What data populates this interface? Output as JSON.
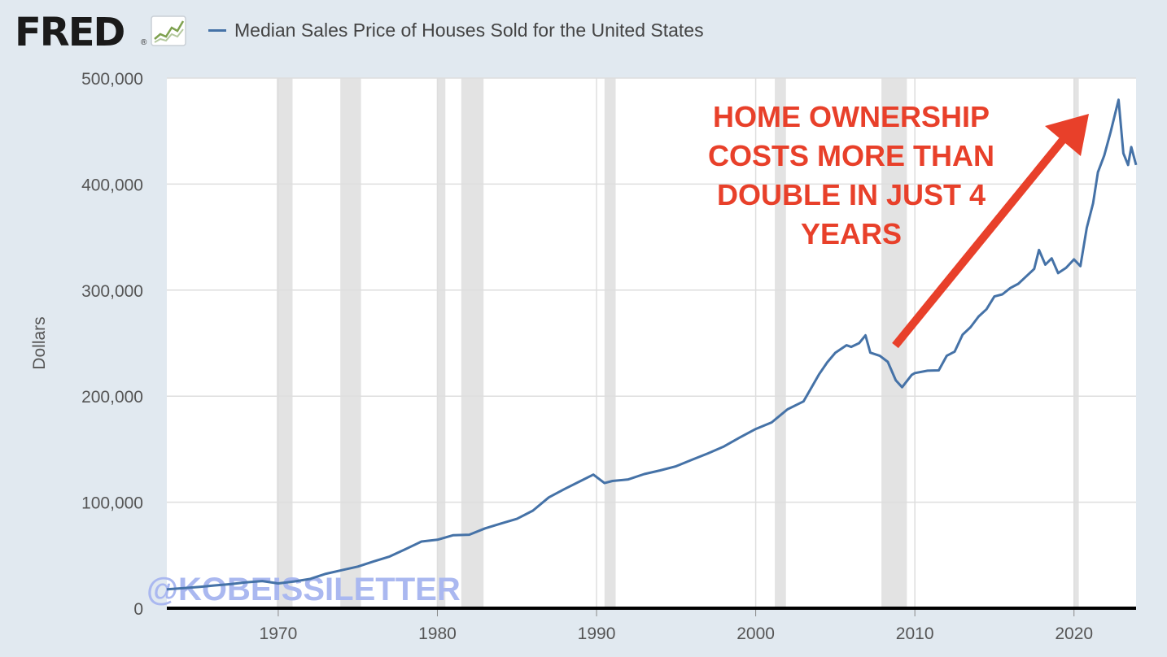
{
  "header": {
    "logo_text": "FRED",
    "logo_reg": "®",
    "logo_icon": "line-chart-icon",
    "series_title": "Median Sales Price of Houses Sold for the United States"
  },
  "colors": {
    "background": "#e1e9f0",
    "plot_background": "#ffffff",
    "series": "#4572a7",
    "recession": "#e3e3e3",
    "annotation": "#e8402a",
    "watermark": "#aab8f0"
  },
  "annotation": {
    "lines": [
      "HOME OWNERSHIP",
      "COSTS MORE THAN",
      "DOUBLE IN JUST 4",
      "YEARS"
    ]
  },
  "watermark": "@KOBEISSILETTER",
  "chart_data": {
    "type": "line",
    "ylabel": "Dollars",
    "xlim": [
      1963,
      2023.9
    ],
    "ylim": [
      0,
      500000
    ],
    "yticks": [
      0,
      100000,
      200000,
      300000,
      400000,
      500000
    ],
    "ytick_labels": [
      "0",
      "100,000",
      "200,000",
      "300,000",
      "400,000",
      "500,000"
    ],
    "xticks": [
      1970,
      1980,
      1990,
      2000,
      2010,
      2020
    ],
    "xtick_labels": [
      "1970",
      "1980",
      "1990",
      "2000",
      "2010",
      "2020"
    ],
    "grid": "horizontal",
    "recessions": [
      [
        1969.9,
        1970.9
      ],
      [
        1973.9,
        1975.2
      ],
      [
        1980.0,
        1980.5
      ],
      [
        1981.5,
        1982.9
      ],
      [
        1990.5,
        1991.2
      ],
      [
        2001.2,
        2001.9
      ],
      [
        2007.9,
        2009.5
      ],
      [
        2020.0,
        2020.3
      ]
    ],
    "series": [
      {
        "name": "Median Sales Price of Houses Sold for the United States",
        "points": [
          [
            1963.0,
            17800
          ],
          [
            1964.0,
            18900
          ],
          [
            1965.0,
            20000
          ],
          [
            1966.0,
            21500
          ],
          [
            1967.0,
            22700
          ],
          [
            1968.0,
            24500
          ],
          [
            1969.0,
            25600
          ],
          [
            1970.0,
            23400
          ],
          [
            1971.0,
            25200
          ],
          [
            1972.0,
            27600
          ],
          [
            1973.0,
            32500
          ],
          [
            1974.0,
            35900
          ],
          [
            1975.0,
            39300
          ],
          [
            1976.0,
            44200
          ],
          [
            1977.0,
            48800
          ],
          [
            1978.0,
            55700
          ],
          [
            1979.0,
            62900
          ],
          [
            1980.0,
            64600
          ],
          [
            1981.0,
            68900
          ],
          [
            1982.0,
            69300
          ],
          [
            1983.0,
            75300
          ],
          [
            1984.0,
            79900
          ],
          [
            1985.0,
            84300
          ],
          [
            1986.0,
            92000
          ],
          [
            1987.0,
            104500
          ],
          [
            1988.0,
            112500
          ],
          [
            1989.0,
            120000
          ],
          [
            1989.8,
            126000
          ],
          [
            1990.5,
            118000
          ],
          [
            1991.0,
            120000
          ],
          [
            1992.0,
            121500
          ],
          [
            1993.0,
            126500
          ],
          [
            1994.0,
            130000
          ],
          [
            1995.0,
            133900
          ],
          [
            1996.0,
            140000
          ],
          [
            1997.0,
            146000
          ],
          [
            1998.0,
            152500
          ],
          [
            1999.0,
            161000
          ],
          [
            2000.0,
            169000
          ],
          [
            2001.0,
            175200
          ],
          [
            2002.0,
            187600
          ],
          [
            2003.0,
            195000
          ],
          [
            2004.0,
            221000
          ],
          [
            2004.5,
            232000
          ],
          [
            2005.0,
            240900
          ],
          [
            2005.7,
            248000
          ],
          [
            2006.0,
            246500
          ],
          [
            2006.5,
            250000
          ],
          [
            2006.9,
            257400
          ],
          [
            2007.2,
            241000
          ],
          [
            2007.8,
            238000
          ],
          [
            2008.3,
            232400
          ],
          [
            2008.8,
            215000
          ],
          [
            2009.2,
            208400
          ],
          [
            2009.8,
            220000
          ],
          [
            2010.0,
            221800
          ],
          [
            2010.8,
            224000
          ],
          [
            2011.5,
            224300
          ],
          [
            2012.0,
            238000
          ],
          [
            2012.5,
            242000
          ],
          [
            2013.0,
            258000
          ],
          [
            2013.5,
            265000
          ],
          [
            2014.0,
            275000
          ],
          [
            2014.5,
            282000
          ],
          [
            2015.0,
            294000
          ],
          [
            2015.5,
            296000
          ],
          [
            2016.0,
            302000
          ],
          [
            2016.5,
            306000
          ],
          [
            2017.0,
            313000
          ],
          [
            2017.5,
            320000
          ],
          [
            2017.8,
            337900
          ],
          [
            2018.2,
            324000
          ],
          [
            2018.6,
            330000
          ],
          [
            2019.0,
            316000
          ],
          [
            2019.5,
            321000
          ],
          [
            2020.0,
            329000
          ],
          [
            2020.4,
            322600
          ],
          [
            2020.8,
            358700
          ],
          [
            2021.2,
            382000
          ],
          [
            2021.5,
            411200
          ],
          [
            2021.9,
            427000
          ],
          [
            2022.3,
            449000
          ],
          [
            2022.8,
            479500
          ],
          [
            2023.1,
            429000
          ],
          [
            2023.4,
            418000
          ],
          [
            2023.6,
            435000
          ],
          [
            2023.9,
            418000
          ]
        ]
      }
    ]
  }
}
